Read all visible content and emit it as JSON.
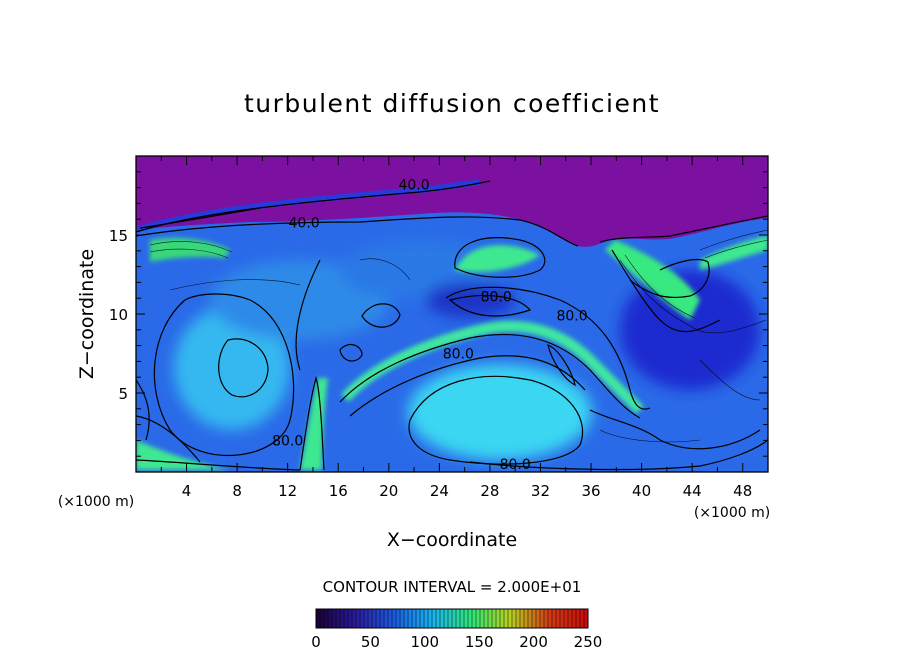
{
  "chart_data": {
    "type": "heatmap",
    "title": "turbulent diffusion coefficient",
    "xlabel": "X−coordinate",
    "ylabel": "Z−coordinate",
    "x_unit": "(×1000 m)",
    "y_unit": "(×1000 m)",
    "xlim": [
      0,
      50
    ],
    "ylim": [
      0,
      20
    ],
    "x_ticks": [
      4,
      8,
      12,
      16,
      20,
      24,
      28,
      32,
      36,
      40,
      44,
      48
    ],
    "y_ticks": [
      5,
      10,
      15
    ],
    "contour_interval_text": "CONTOUR INTERVAL = 2.000E+01",
    "contour_interval": 20,
    "contour_labels": [
      {
        "text": "40.0",
        "x": 22,
        "y": 18.2
      },
      {
        "text": "40.0",
        "x": 13.3,
        "y": 15.8
      },
      {
        "text": "80.0",
        "x": 28.5,
        "y": 11.1
      },
      {
        "text": "80.0",
        "x": 34.5,
        "y": 9.9
      },
      {
        "text": "80.0",
        "x": 25.5,
        "y": 7.5
      },
      {
        "text": "80.0",
        "x": 12,
        "y": 2.0
      },
      {
        "text": "80.0",
        "x": 30,
        "y": 0.5
      }
    ],
    "colorbar": {
      "ticks": [
        0,
        50,
        100,
        150,
        200,
        250
      ],
      "range": [
        0,
        250
      ],
      "colors": [
        "#1a0033",
        "#2a1a9a",
        "#1c5ae0",
        "#18b4f0",
        "#2ee67a",
        "#b8d21e",
        "#d23c14",
        "#c80a0a"
      ]
    },
    "colors": {
      "background": "#2a6ae8",
      "upper_layer": "#7c0fa0",
      "cyan_core": "#38d8f0",
      "green": "#38e880",
      "dark_blue": "#1a2ad0"
    }
  }
}
